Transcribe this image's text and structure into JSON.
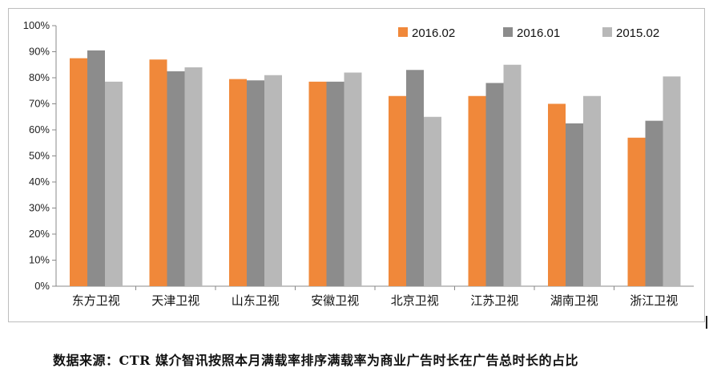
{
  "chart_data": {
    "type": "bar",
    "categories": [
      "东方卫视",
      "天津卫视",
      "山东卫视",
      "安徽卫视",
      "北京卫视",
      "江苏卫视",
      "湖南卫视",
      "浙江卫视"
    ],
    "series": [
      {
        "name": "2016.02",
        "color": "#f0883a",
        "values": [
          87.5,
          87,
          79.5,
          78.5,
          73,
          73,
          70,
          57
        ]
      },
      {
        "name": "2016.01",
        "color": "#8c8c8c",
        "values": [
          90.5,
          82.5,
          79,
          78.5,
          83,
          78,
          62.5,
          63.5
        ]
      },
      {
        "name": "2015.02",
        "color": "#b8b8b8",
        "values": [
          78.5,
          84,
          81,
          82,
          65,
          85,
          73,
          80.5
        ]
      }
    ],
    "ylim": [
      0,
      100
    ],
    "yticks": [
      "0%",
      "10%",
      "20%",
      "30%",
      "40%",
      "50%",
      "60%",
      "70%",
      "80%",
      "90%",
      "100%"
    ],
    "legend_position": "top-right",
    "grid": false
  },
  "caption": "数据来源：CTR 媒介智讯按照本月满载率排序满载率为商业广告时长在广告总时长的占比"
}
